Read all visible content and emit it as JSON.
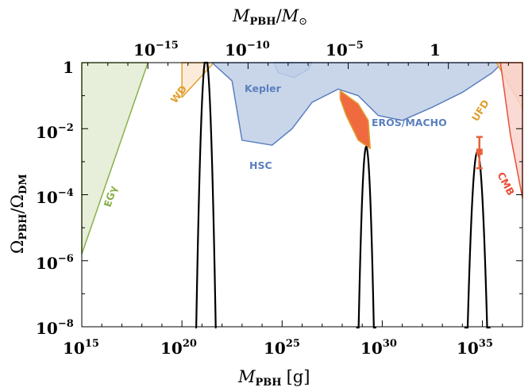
{
  "chart_data": {
    "type": "area",
    "x_axis": {
      "label_main": "M",
      "label_sub": "PBH",
      "label_unit": "[g]",
      "scale": "log",
      "range_log10": [
        15,
        37
      ],
      "ticks": [
        {
          "base": "10",
          "exp": "15",
          "log10": 15
        },
        {
          "base": "10",
          "exp": "20",
          "log10": 20
        },
        {
          "base": "10",
          "exp": "25",
          "log10": 25
        },
        {
          "base": "10",
          "exp": "30",
          "log10": 30
        },
        {
          "base": "10",
          "exp": "35",
          "log10": 35
        }
      ]
    },
    "top_axis": {
      "label_main": "M",
      "label_sub": "PBH",
      "label_slash": "/",
      "label_sun": "M",
      "label_sun_sub": "⊙",
      "scale": "log",
      "ticks": [
        {
          "base": "10",
          "exp": "−15",
          "log10_solar": -15
        },
        {
          "base": "10",
          "exp": "−10",
          "log10_solar": -10
        },
        {
          "base": "10",
          "exp": "−5",
          "log10_solar": -5
        },
        {
          "base": "1",
          "exp": "",
          "log10_solar": 0
        }
      ]
    },
    "y_axis": {
      "label_omega": "Ω",
      "label_sub1": "PBH",
      "label_slash": "/",
      "label_sub2": "DM",
      "scale": "log",
      "range_log10": [
        -8,
        0
      ],
      "ticks": [
        {
          "base": "1",
          "exp": "",
          "log10": 0
        },
        {
          "base": "10",
          "exp": "−2",
          "log10": -2
        },
        {
          "base": "10",
          "exp": "−4",
          "log10": -4
        },
        {
          "base": "10",
          "exp": "−6",
          "log10": -6
        },
        {
          "base": "10",
          "exp": "−8",
          "log10": -8
        }
      ]
    },
    "constraints": [
      {
        "name": "EGγ",
        "color": "#8ab04a",
        "fill": "#e3ecd3",
        "boundary": [
          [
            15,
            -5.8
          ],
          [
            18.3,
            0
          ]
        ]
      },
      {
        "name": "WD",
        "color": "#e0a030",
        "fill": "#fbe7d2",
        "boundary": [
          [
            20,
            0
          ],
          [
            20,
            -1.05
          ],
          [
            21.6,
            0
          ]
        ]
      },
      {
        "name": "Kepler",
        "color": "#5b7fbf",
        "fill": "#c0cfe6",
        "boundary": [
          [
            24.6,
            0
          ],
          [
            24.8,
            -0.3
          ],
          [
            25.6,
            -0.45
          ],
          [
            26.3,
            -0.2
          ],
          [
            26.5,
            0
          ]
        ]
      },
      {
        "name": "HSC",
        "color": "#5b7fbf",
        "fill": "#c0cfe6",
        "boundary": [
          [
            21.5,
            0
          ],
          [
            22.5,
            -0.55
          ],
          [
            23,
            -2.35
          ],
          [
            24.5,
            -2.5
          ],
          [
            25.5,
            -2.0
          ],
          [
            26.5,
            -1.2
          ],
          [
            27.8,
            -0.8
          ],
          [
            28.8,
            -1.0
          ],
          [
            29.8,
            -1.6
          ],
          [
            31,
            -1.75
          ],
          [
            32.5,
            -1.35
          ],
          [
            34,
            -0.9
          ],
          [
            35.5,
            -0.3
          ],
          [
            36,
            0
          ]
        ]
      },
      {
        "name": "EROS/MACHO",
        "color": "#e0a030",
        "fill": "#f06a3f",
        "boundary": [
          [
            27.9,
            -0.85
          ],
          [
            28.8,
            -1.25
          ],
          [
            29.3,
            -1.75
          ],
          [
            29.4,
            -2.6
          ],
          [
            28.8,
            -2.35
          ],
          [
            28.2,
            -1.6
          ],
          [
            27.9,
            -1.1
          ]
        ]
      },
      {
        "name": "UFD",
        "color": "#e0a030",
        "fill": "#f7cfb8",
        "boundary": [
          [
            35.7,
            0
          ],
          [
            36.7,
            -1.05
          ],
          [
            37,
            -1.4
          ]
        ]
      },
      {
        "name": "CMB",
        "color": "#e8503a",
        "fill": "#f9d3cc",
        "boundary": [
          [
            35.9,
            0
          ],
          [
            36.4,
            -2.2
          ],
          [
            37,
            -4.1
          ]
        ]
      }
    ],
    "peaks": [
      {
        "center_log10": 21.2,
        "peak_log10": 0.15,
        "width_log10": 1.05
      },
      {
        "center_log10": 29.2,
        "peak_log10": -2.55,
        "width_log10": 1.0
      },
      {
        "center_log10": 34.75,
        "peak_log10": -2.7,
        "width_log10": 1.3
      }
    ],
    "error_bar": {
      "x_log10": 34.85,
      "y_log10": -2.7,
      "y_low_log10": -3.2,
      "y_high_log10": -2.25,
      "color": "#e8603a"
    },
    "grid": false,
    "legend": "none"
  }
}
